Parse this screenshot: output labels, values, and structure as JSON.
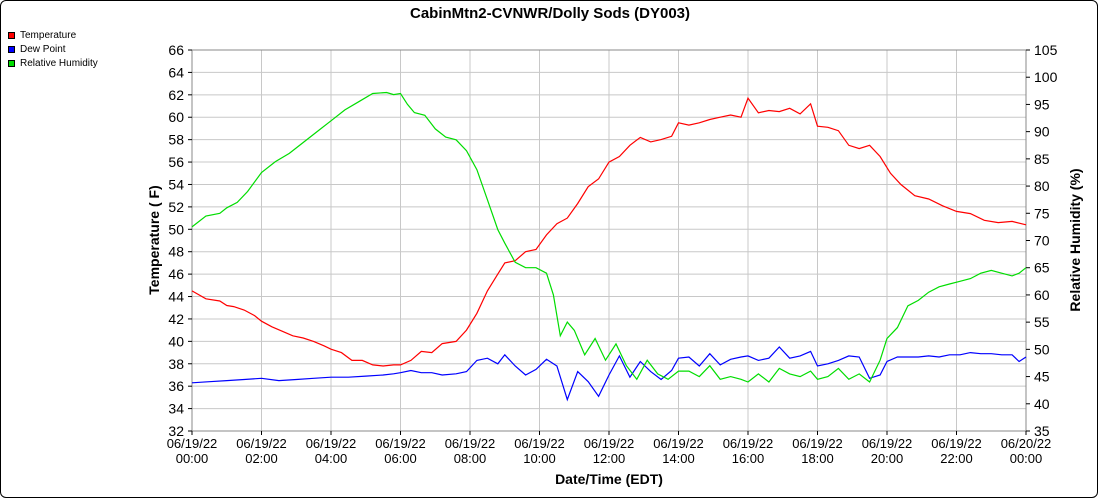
{
  "chart_data": {
    "type": "line",
    "title": "CabinMtn2-CVNWR/Dolly Sods (DY003)",
    "xlabel": "Date/Time (EDT)",
    "ylabel": "Temperature ( F)",
    "ylabel_right": "Relative Humidity (%)",
    "ylim": [
      32,
      66
    ],
    "ylim_right": [
      35,
      105
    ],
    "yticks": [
      "32",
      "34",
      "36",
      "38",
      "40",
      "42",
      "44",
      "46",
      "48",
      "50",
      "52",
      "54",
      "56",
      "58",
      "60",
      "62",
      "64",
      "66"
    ],
    "yticks_right": [
      "35",
      "40",
      "45",
      "50",
      "55",
      "60",
      "65",
      "70",
      "75",
      "80",
      "85",
      "90",
      "95",
      "100",
      "105"
    ],
    "x_range_hours": [
      0,
      24
    ],
    "xticks": [
      {
        "date": "06/19/22",
        "time": "00:00"
      },
      {
        "date": "06/19/22",
        "time": "02:00"
      },
      {
        "date": "06/19/22",
        "time": "04:00"
      },
      {
        "date": "06/19/22",
        "time": "06:00"
      },
      {
        "date": "06/19/22",
        "time": "08:00"
      },
      {
        "date": "06/19/22",
        "time": "10:00"
      },
      {
        "date": "06/19/22",
        "time": "12:00"
      },
      {
        "date": "06/19/22",
        "time": "14:00"
      },
      {
        "date": "06/19/22",
        "time": "16:00"
      },
      {
        "date": "06/19/22",
        "time": "18:00"
      },
      {
        "date": "06/19/22",
        "time": "20:00"
      },
      {
        "date": "06/19/22",
        "time": "22:00"
      },
      {
        "date": "06/20/22",
        "time": "00:00"
      }
    ],
    "grid": true,
    "legend_position": "top-left",
    "series": [
      {
        "name": "Temperature",
        "color": "#ff0000",
        "axis": "left",
        "x": [
          0,
          0.4,
          0.8,
          1.0,
          1.2,
          1.5,
          1.8,
          2.0,
          2.3,
          2.6,
          2.9,
          3.2,
          3.5,
          3.8,
          4.0,
          4.3,
          4.6,
          4.9,
          5.2,
          5.5,
          5.8,
          6.0,
          6.3,
          6.6,
          6.9,
          7.2,
          7.6,
          7.9,
          8.2,
          8.5,
          8.8,
          9.0,
          9.3,
          9.6,
          9.9,
          10.2,
          10.5,
          10.8,
          11.1,
          11.4,
          11.7,
          12.0,
          12.3,
          12.6,
          12.9,
          13.2,
          13.5,
          13.8,
          14.0,
          14.3,
          14.6,
          14.9,
          15.2,
          15.5,
          15.8,
          16.0,
          16.3,
          16.6,
          16.9,
          17.2,
          17.5,
          17.8,
          18.0,
          18.3,
          18.6,
          18.9,
          19.2,
          19.5,
          19.8,
          20.1,
          20.4,
          20.8,
          21.2,
          21.6,
          22.0,
          22.4,
          22.8,
          23.2,
          23.6,
          24.0
        ],
        "values": [
          44.5,
          43.8,
          43.6,
          43.2,
          43.1,
          42.8,
          42.3,
          41.8,
          41.3,
          40.9,
          40.5,
          40.3,
          40.0,
          39.6,
          39.3,
          39.0,
          38.3,
          38.3,
          37.9,
          37.8,
          37.9,
          37.9,
          38.3,
          39.1,
          39.0,
          39.8,
          40.0,
          41.0,
          42.5,
          44.5,
          46.0,
          47.0,
          47.2,
          48.0,
          48.2,
          49.5,
          50.5,
          51.0,
          52.3,
          53.8,
          54.5,
          56.0,
          56.5,
          57.5,
          58.2,
          57.8,
          58.0,
          58.3,
          59.5,
          59.3,
          59.5,
          59.8,
          60.0,
          60.2,
          60.0,
          61.7,
          60.4,
          60.6,
          60.5,
          60.8,
          60.3,
          61.2,
          59.2,
          59.1,
          58.8,
          57.5,
          57.2,
          57.5,
          56.5,
          55.0,
          54.0,
          53.0,
          52.7,
          52.1,
          51.6,
          51.4,
          50.8,
          50.6,
          50.7,
          50.4
        ]
      },
      {
        "name": "Dew Point",
        "color": "#0000ff",
        "axis": "left",
        "x": [
          0,
          0.5,
          1.0,
          1.5,
          2.0,
          2.5,
          3.0,
          3.5,
          4.0,
          4.5,
          5.0,
          5.5,
          5.8,
          6.0,
          6.3,
          6.6,
          6.9,
          7.2,
          7.6,
          7.9,
          8.2,
          8.5,
          8.8,
          9.0,
          9.3,
          9.6,
          9.9,
          10.2,
          10.5,
          10.8,
          11.1,
          11.4,
          11.7,
          12.0,
          12.3,
          12.6,
          12.9,
          13.2,
          13.5,
          13.8,
          14.0,
          14.3,
          14.6,
          14.9,
          15.2,
          15.5,
          15.8,
          16.0,
          16.3,
          16.6,
          16.9,
          17.2,
          17.5,
          17.8,
          18.0,
          18.3,
          18.6,
          18.9,
          19.2,
          19.5,
          19.8,
          20.0,
          20.3,
          20.6,
          20.9,
          21.2,
          21.5,
          21.8,
          22.1,
          22.4,
          22.7,
          23.0,
          23.3,
          23.6,
          23.8,
          24.0
        ],
        "values": [
          36.3,
          36.4,
          36.5,
          36.6,
          36.7,
          36.5,
          36.6,
          36.7,
          36.8,
          36.8,
          36.9,
          37.0,
          37.1,
          37.2,
          37.4,
          37.2,
          37.2,
          37.0,
          37.1,
          37.3,
          38.3,
          38.5,
          38.0,
          38.8,
          37.8,
          37.0,
          37.5,
          38.4,
          37.8,
          34.8,
          37.3,
          36.4,
          35.1,
          37.0,
          38.7,
          36.8,
          38.2,
          37.3,
          36.6,
          37.4,
          38.5,
          38.6,
          37.8,
          38.9,
          37.9,
          38.4,
          38.6,
          38.7,
          38.3,
          38.5,
          39.5,
          38.5,
          38.7,
          39.1,
          37.8,
          38.0,
          38.3,
          38.7,
          38.6,
          36.7,
          37.0,
          38.2,
          38.6,
          38.6,
          38.6,
          38.7,
          38.6,
          38.8,
          38.8,
          39.0,
          38.9,
          38.9,
          38.8,
          38.8,
          38.2,
          38.6
        ]
      },
      {
        "name": "Relative Humidity",
        "color": "#00dd00",
        "axis": "right",
        "x": [
          0,
          0.4,
          0.8,
          1.0,
          1.3,
          1.6,
          2.0,
          2.4,
          2.8,
          3.2,
          3.6,
          4.0,
          4.4,
          4.8,
          5.2,
          5.6,
          5.8,
          6.0,
          6.2,
          6.4,
          6.7,
          7.0,
          7.3,
          7.6,
          7.9,
          8.2,
          8.5,
          8.8,
          9.0,
          9.3,
          9.6,
          9.9,
          10.2,
          10.4,
          10.6,
          10.8,
          11.0,
          11.3,
          11.6,
          11.9,
          12.2,
          12.5,
          12.8,
          13.1,
          13.4,
          13.7,
          14.0,
          14.3,
          14.6,
          14.9,
          15.2,
          15.5,
          15.8,
          16.0,
          16.3,
          16.6,
          16.9,
          17.2,
          17.5,
          17.8,
          18.0,
          18.3,
          18.6,
          18.9,
          19.2,
          19.5,
          19.8,
          20.0,
          20.3,
          20.6,
          20.9,
          21.2,
          21.5,
          21.8,
          22.1,
          22.4,
          22.7,
          23.0,
          23.3,
          23.6,
          23.8,
          24.0
        ],
        "values": [
          72.5,
          74.5,
          75.0,
          76.0,
          77.0,
          79.0,
          82.5,
          84.5,
          86.0,
          88.0,
          90.0,
          92.0,
          94.0,
          95.5,
          97.0,
          97.2,
          96.8,
          97.0,
          95.0,
          93.5,
          93.0,
          90.5,
          89.0,
          88.5,
          86.5,
          83.0,
          77.5,
          72.0,
          69.5,
          66.0,
          65.0,
          65.0,
          64.0,
          60.0,
          52.5,
          55.0,
          53.5,
          49.0,
          52.0,
          48.0,
          51.0,
          47.0,
          44.5,
          48.0,
          45.5,
          44.5,
          46.0,
          46.0,
          45.0,
          47.0,
          44.5,
          45.0,
          44.5,
          44.0,
          45.5,
          44.0,
          46.5,
          45.5,
          45.0,
          46.0,
          44.5,
          45.0,
          46.5,
          44.5,
          45.5,
          44.0,
          48.0,
          52.0,
          54.0,
          58.0,
          59.0,
          60.5,
          61.5,
          62.0,
          62.5,
          63.0,
          64.0,
          64.5,
          64.0,
          63.5,
          64.0,
          65.0
        ]
      }
    ]
  }
}
